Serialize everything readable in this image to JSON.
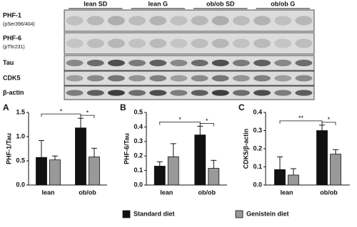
{
  "blot": {
    "lanes": [
      "lean SD",
      "lean G",
      "ob/ob SD",
      "ob/ob G"
    ],
    "rows": [
      {
        "label": "PHF-1",
        "sublabel": "(pSer396/404)"
      },
      {
        "label": "PHF-6",
        "sublabel": "(pThr231)"
      },
      {
        "label": "Tau"
      },
      {
        "label": "CDK5"
      },
      {
        "label": "β-actin"
      }
    ]
  },
  "chart_data": [
    {
      "type": "bar",
      "panel": "A",
      "ylabel": "PHF-1/Tau",
      "categories": [
        "lean",
        "ob/ob"
      ],
      "series": [
        {
          "name": "Standard diet",
          "color": "#111111",
          "values": [
            0.57,
            1.18
          ],
          "errors": [
            0.35,
            0.2
          ]
        },
        {
          "name": "Genistein diet",
          "color": "#999999",
          "values": [
            0.52,
            0.58
          ],
          "errors": [
            0.08,
            0.18
          ]
        }
      ],
      "ylim": [
        0,
        1.5
      ],
      "yticks": [
        {
          "value": 0,
          "label": "0.0"
        },
        {
          "value": 0.5,
          "label": "0.5"
        },
        {
          "value": 1,
          "label": "1.0"
        },
        {
          "value": 1.5,
          "label": "1.5"
        }
      ],
      "annotations": [
        "*",
        "*"
      ]
    },
    {
      "type": "bar",
      "panel": "B",
      "ylabel": "PHF-6/Tau",
      "categories": [
        "lean",
        "ob/ob"
      ],
      "series": [
        {
          "name": "Standard diet",
          "color": "#111111",
          "values": [
            0.13,
            0.345
          ],
          "errors": [
            0.03,
            0.06
          ]
        },
        {
          "name": "Genistein diet",
          "color": "#999999",
          "values": [
            0.195,
            0.115
          ],
          "errors": [
            0.09,
            0.055
          ]
        }
      ],
      "ylim": [
        0,
        0.5
      ],
      "yticks": [
        {
          "value": 0,
          "label": "0.0"
        },
        0.1,
        0.2,
        0.3,
        0.4,
        0.5
      ],
      "annotations": [
        "*",
        "*"
      ]
    },
    {
      "type": "bar",
      "panel": "C",
      "ylabel": "CDK5/β-actin",
      "categories": [
        "lean",
        "ob/ob"
      ],
      "series": [
        {
          "name": "Standard diet",
          "color": "#111111",
          "values": [
            0.085,
            0.3
          ],
          "errors": [
            0.07,
            0.03
          ]
        },
        {
          "name": "Genistein diet",
          "color": "#999999",
          "values": [
            0.055,
            0.17
          ],
          "errors": [
            0.035,
            0.025
          ]
        }
      ],
      "ylim": [
        0,
        0.4
      ],
      "yticks": [
        {
          "value": 0,
          "label": "0.0"
        },
        0.1,
        0.2,
        0.3,
        0.4
      ],
      "annotations": [
        "**",
        "*"
      ]
    }
  ]
}
